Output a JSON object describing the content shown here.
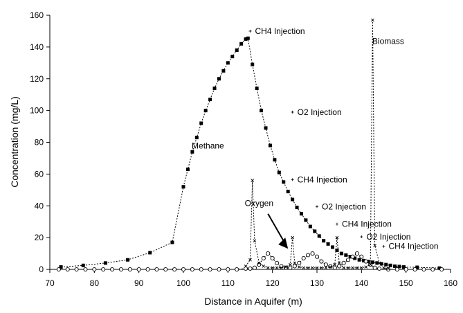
{
  "chart_data": {
    "type": "line",
    "xlabel": "Distance in Aquifer (m)",
    "ylabel": "Concentration (mg/L)",
    "xlim": [
      70,
      160
    ],
    "ylim": [
      0,
      160
    ],
    "x_ticks": [
      70,
      80,
      90,
      100,
      110,
      120,
      130,
      140,
      150,
      160
    ],
    "y_ticks": [
      0,
      20,
      40,
      60,
      80,
      100,
      120,
      140,
      160
    ],
    "series": [
      {
        "name": "Methane",
        "marker": "square",
        "x": [
          72.5,
          77.5,
          82.5,
          87.5,
          92.5,
          97.5,
          100,
          101,
          102,
          103,
          104,
          105,
          106,
          107,
          108,
          109,
          110,
          111,
          112,
          113,
          114,
          114.5,
          115.5,
          116.5,
          117.5,
          118.5,
          119.5,
          120.5,
          121.5,
          122.5,
          123.5,
          124.5,
          125.5,
          126.5,
          127.5,
          128.5,
          129.5,
          130.5,
          131.5,
          132.5,
          133.5,
          134.5,
          135.5,
          136.5,
          137.5,
          138.5,
          139.5,
          140.5,
          141.5,
          142.5,
          143.5,
          144.5,
          145.5,
          146.5,
          147.5,
          148.5,
          149.5,
          152.5,
          157.5
        ],
        "y": [
          1.5,
          2.5,
          4,
          6,
          10.5,
          17,
          52,
          63,
          74,
          83,
          92,
          100,
          107,
          114,
          120,
          125,
          130,
          134,
          138,
          142,
          145,
          145.5,
          129,
          114,
          100,
          89,
          78,
          69,
          61,
          55,
          49,
          44,
          39,
          35,
          31,
          27,
          24,
          21,
          18,
          16,
          14,
          12,
          10,
          9,
          8,
          7,
          6,
          5.5,
          5,
          4.5,
          4,
          3.5,
          3,
          2.5,
          2,
          1.8,
          1.5,
          1.3,
          0.8
        ]
      },
      {
        "name": "Oxygen",
        "marker": "circle-open",
        "x": [
          72,
          74,
          76,
          78,
          80,
          82,
          84,
          86,
          88,
          90,
          92,
          94,
          96,
          98,
          100,
          102,
          104,
          106,
          108,
          110,
          112,
          114,
          115,
          116,
          117,
          118,
          119,
          120,
          121,
          122,
          123,
          124,
          125,
          126,
          127,
          128,
          129,
          130,
          131,
          132,
          133,
          134,
          135,
          136,
          137,
          138,
          139,
          140,
          141,
          142,
          143,
          144,
          146,
          148,
          150,
          152,
          154,
          156,
          158
        ],
        "y": [
          0,
          0,
          0,
          0,
          0,
          0,
          0,
          0,
          0,
          0,
          0,
          0,
          0,
          0,
          0,
          0,
          0,
          0,
          0,
          0,
          0,
          0.5,
          0.5,
          1,
          3,
          7,
          10,
          7,
          4,
          2,
          1,
          1,
          2,
          4,
          7,
          9,
          10,
          8,
          5,
          3,
          2,
          1,
          2,
          4,
          6,
          8,
          10,
          8,
          5,
          3,
          1,
          0.5,
          0,
          0,
          0,
          0,
          0,
          0,
          0
        ]
      },
      {
        "name": "Biomass",
        "marker": "x",
        "x": [
          114,
          115,
          115.5,
          116,
          117,
          118,
          119,
          120,
          121,
          122,
          123,
          124,
          124.5,
          125,
          126,
          127,
          128,
          129,
          130,
          131,
          132,
          133,
          134,
          134.5,
          135,
          136,
          137,
          138,
          139,
          140,
          141,
          142,
          142.5,
          143,
          144,
          145,
          146
        ],
        "y": [
          2,
          6,
          56,
          18,
          4,
          2,
          1,
          1,
          1,
          1,
          1.5,
          3,
          20,
          4,
          1.5,
          1,
          1,
          1,
          1,
          1,
          1,
          1.5,
          3,
          20,
          4,
          1,
          1,
          1,
          1,
          1,
          1.5,
          3,
          157,
          15,
          4,
          1,
          0.5
        ]
      }
    ],
    "annotations": [
      {
        "text": "CH4 Injection",
        "x": 115,
        "y": 150
      },
      {
        "text": "O2 Injection",
        "x": 124.5,
        "y": 99
      },
      {
        "text": "CH4 Injection",
        "x": 124.5,
        "y": 56.5
      },
      {
        "text": "O2 Injection",
        "x": 130,
        "y": 39.5
      },
      {
        "text": "CH4 Injection",
        "x": 134.5,
        "y": 28.5
      },
      {
        "text": "O2 Injection",
        "x": 140,
        "y": 20.5
      },
      {
        "text": "CH4 Injection",
        "x": 145,
        "y": 14.5
      }
    ],
    "series_labels": [
      {
        "text": "Methane",
        "x": 105.5,
        "y": 76
      },
      {
        "text": "Oxygen",
        "x": 117,
        "y": 40
      },
      {
        "text": "Biomass",
        "x": 146,
        "y": 142
      }
    ]
  }
}
